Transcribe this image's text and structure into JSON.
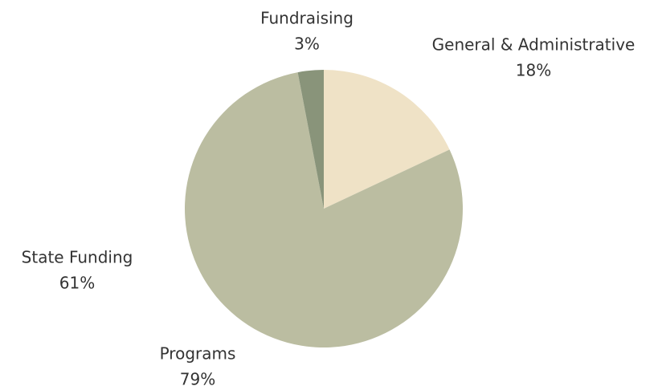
{
  "chart_data": {
    "type": "pie",
    "categories": [
      "General & Administrative",
      "Programs",
      "Fundraising"
    ],
    "values": [
      18,
      79,
      3
    ],
    "value_labels": [
      "18%",
      "79%",
      "3%"
    ],
    "colors": [
      "#efe2c6",
      "#bbbda1",
      "#89947a"
    ],
    "annotation": {
      "text": "State Funding",
      "label": "61%"
    }
  }
}
